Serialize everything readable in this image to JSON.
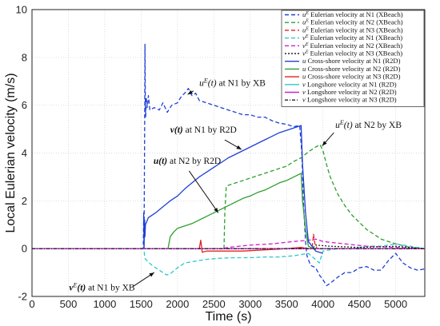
{
  "chart_data": {
    "type": "line",
    "xlabel": "Time (s)",
    "ylabel": "Local Eulerian velocity (m/s)",
    "xlim": [
      0,
      5400
    ],
    "ylim": [
      -2,
      10
    ],
    "xticks": [
      0,
      500,
      1000,
      1500,
      2000,
      2500,
      3000,
      3500,
      4000,
      4500,
      5000
    ],
    "yticks": [
      -2,
      0,
      2,
      4,
      6,
      8,
      10
    ],
    "grid": true,
    "legend_position": "top-right",
    "series": [
      {
        "name_prefix": "u",
        "name_sup": "E",
        "name_rest": " Eulerian velocity at N1 (XBeach)",
        "color": "#1f3fd6",
        "dash": "5,3",
        "points": [
          [
            0,
            0
          ],
          [
            1530,
            0
          ],
          [
            1535,
            1.5
          ],
          [
            1540,
            0
          ],
          [
            1548,
            5
          ],
          [
            1553,
            8.55
          ],
          [
            1558,
            6
          ],
          [
            1563,
            5.5
          ],
          [
            1570,
            6.3
          ],
          [
            1585,
            5.9
          ],
          [
            1600,
            6.4
          ],
          [
            1620,
            5.8
          ],
          [
            1680,
            5.9
          ],
          [
            1750,
            5.8
          ],
          [
            1800,
            6.1
          ],
          [
            1860,
            5.7
          ],
          [
            1920,
            6.0
          ],
          [
            2000,
            6.1
          ],
          [
            2060,
            6.4
          ],
          [
            2100,
            6.5
          ],
          [
            2150,
            6.7
          ],
          [
            2200,
            6.4
          ],
          [
            2250,
            6.5
          ],
          [
            2300,
            6.2
          ],
          [
            2400,
            6.1
          ],
          [
            2500,
            6.0
          ],
          [
            2600,
            5.9
          ],
          [
            2700,
            5.8
          ],
          [
            2800,
            5.7
          ],
          [
            2900,
            5.6
          ],
          [
            3000,
            5.6
          ],
          [
            3100,
            5.5
          ],
          [
            3200,
            5.5
          ],
          [
            3300,
            5.35
          ],
          [
            3400,
            5.25
          ],
          [
            3500,
            5.2
          ],
          [
            3600,
            5.1
          ],
          [
            3680,
            5.15
          ],
          [
            3710,
            4.0
          ],
          [
            3730,
            2.0
          ],
          [
            3760,
            0.3
          ],
          [
            3780,
            -0.3
          ],
          [
            3830,
            -0.7
          ],
          [
            3900,
            -0.8
          ],
          [
            3950,
            -1.1
          ],
          [
            4000,
            -1.3
          ],
          [
            4050,
            -1.55
          ],
          [
            4100,
            -1.45
          ],
          [
            4200,
            -1.2
          ],
          [
            4300,
            -1.0
          ],
          [
            4400,
            -1.0
          ],
          [
            4500,
            -0.8
          ],
          [
            4600,
            -0.75
          ],
          [
            4700,
            -0.9
          ],
          [
            4800,
            -0.9
          ],
          [
            4900,
            -0.5
          ],
          [
            5000,
            -0.2
          ],
          [
            5100,
            -0.6
          ],
          [
            5200,
            -0.8
          ],
          [
            5300,
            -0.9
          ],
          [
            5400,
            -0.85
          ]
        ]
      },
      {
        "name_prefix": "u",
        "name_sup": "E",
        "name_rest": " Eulerian velocity at N2 (XBeach)",
        "color": "#2e9e2e",
        "dash": "5,3",
        "points": [
          [
            0,
            0
          ],
          [
            2640,
            0
          ],
          [
            2650,
            1.5
          ],
          [
            2670,
            2.6
          ],
          [
            2700,
            2.65
          ],
          [
            2800,
            2.75
          ],
          [
            2900,
            2.85
          ],
          [
            3000,
            2.95
          ],
          [
            3100,
            3.05
          ],
          [
            3200,
            3.15
          ],
          [
            3300,
            3.25
          ],
          [
            3400,
            3.35
          ],
          [
            3500,
            3.45
          ],
          [
            3600,
            3.65
          ],
          [
            3700,
            3.8
          ],
          [
            3800,
            4.05
          ],
          [
            3900,
            4.25
          ],
          [
            3960,
            4.35
          ],
          [
            4000,
            4.1
          ],
          [
            4050,
            3.5
          ],
          [
            4100,
            3.0
          ],
          [
            4200,
            2.3
          ],
          [
            4300,
            1.8
          ],
          [
            4400,
            1.4
          ],
          [
            4500,
            1.1
          ],
          [
            4600,
            0.8
          ],
          [
            4700,
            0.6
          ],
          [
            4800,
            0.4
          ],
          [
            4900,
            0.3
          ],
          [
            5000,
            0.2
          ],
          [
            5200,
            0.05
          ],
          [
            5400,
            0
          ]
        ]
      },
      {
        "name_prefix": "u",
        "name_sup": "E",
        "name_rest": " Eulerian velocity at N3 (XBeach)",
        "color": "#e02020",
        "dash": "5,3",
        "points": [
          [
            0,
            0
          ],
          [
            3850,
            0
          ],
          [
            3870,
            0.6
          ],
          [
            3890,
            0.2
          ],
          [
            3920,
            0
          ],
          [
            5400,
            0
          ]
        ]
      },
      {
        "name_prefix": "v",
        "name_sup": "E",
        "name_rest": " Eulerian velocity at N1 (XBeach)",
        "color": "#2ec8c8",
        "dash": "5,3",
        "points": [
          [
            0,
            0
          ],
          [
            1540,
            0
          ],
          [
            1550,
            -0.4
          ],
          [
            1580,
            -0.5
          ],
          [
            1650,
            -0.7
          ],
          [
            1750,
            -0.9
          ],
          [
            1850,
            -1.1
          ],
          [
            1900,
            -1.05
          ],
          [
            2000,
            -0.8
          ],
          [
            2100,
            -0.6
          ],
          [
            2200,
            -0.55
          ],
          [
            2400,
            -0.45
          ],
          [
            2600,
            -0.4
          ],
          [
            2800,
            -0.38
          ],
          [
            3000,
            -0.38
          ],
          [
            3200,
            -0.35
          ],
          [
            3400,
            -0.35
          ],
          [
            3600,
            -0.3
          ],
          [
            3700,
            -0.25
          ],
          [
            3800,
            -0.2
          ],
          [
            3950,
            -0.6
          ],
          [
            4000,
            -0.1
          ],
          [
            4200,
            0
          ],
          [
            4400,
            0
          ],
          [
            4600,
            0.1
          ],
          [
            4800,
            0.1
          ],
          [
            5000,
            0.2
          ],
          [
            5200,
            0.1
          ],
          [
            5400,
            0
          ]
        ]
      },
      {
        "name_prefix": "v",
        "name_sup": "E",
        "name_rest": " Eulerian velocity at N2 (XBeach)",
        "color": "#d020d0",
        "dash": "5,3",
        "points": [
          [
            0,
            0
          ],
          [
            2600,
            0
          ],
          [
            2700,
            0.05
          ],
          [
            3000,
            0.15
          ],
          [
            3300,
            0.2
          ],
          [
            3600,
            0.3
          ],
          [
            3800,
            0.35
          ],
          [
            3900,
            0.4
          ],
          [
            4000,
            0.3
          ],
          [
            4300,
            0.2
          ],
          [
            4600,
            0.1
          ],
          [
            5000,
            0.05
          ],
          [
            5400,
            0
          ]
        ]
      },
      {
        "name_prefix": "v",
        "name_sup": "E",
        "name_rest": " Eulerian velocity at N3 (XBeach)",
        "color": "#222222",
        "dash": "2,2",
        "points": [
          [
            0,
            0
          ],
          [
            3850,
            0
          ],
          [
            3900,
            0.15
          ],
          [
            4100,
            0.1
          ],
          [
            4500,
            0.05
          ],
          [
            5000,
            0.1
          ],
          [
            5400,
            0
          ]
        ]
      },
      {
        "name_prefix": "u",
        "name_sup": "",
        "name_rest": "  Cross-shore velocity at N1 (R2D)",
        "color": "#1f3fd6",
        "dash": "",
        "points": [
          [
            1540,
            0
          ],
          [
            1548,
            1.2
          ],
          [
            1553,
            0.5
          ],
          [
            1560,
            1.0
          ],
          [
            1600,
            1.3
          ],
          [
            1700,
            1.5
          ],
          [
            1800,
            1.75
          ],
          [
            1900,
            2.0
          ],
          [
            2000,
            2.2
          ],
          [
            2100,
            2.5
          ],
          [
            2200,
            2.75
          ],
          [
            2300,
            3.0
          ],
          [
            2400,
            3.2
          ],
          [
            2500,
            3.4
          ],
          [
            2600,
            3.6
          ],
          [
            2700,
            3.8
          ],
          [
            2800,
            3.95
          ],
          [
            2900,
            4.1
          ],
          [
            3000,
            4.25
          ],
          [
            3100,
            4.4
          ],
          [
            3200,
            4.55
          ],
          [
            3300,
            4.7
          ],
          [
            3400,
            4.85
          ],
          [
            3500,
            4.95
          ],
          [
            3600,
            5.05
          ],
          [
            3700,
            5.15
          ],
          [
            3720,
            3.5
          ],
          [
            3760,
            1.5
          ],
          [
            3800,
            0.3
          ],
          [
            3900,
            -0.1
          ],
          [
            4000,
            -0.2
          ]
        ]
      },
      {
        "name_prefix": "u",
        "name_sup": "",
        "name_rest": "  Cross-shore velocity at N2 (R2D)",
        "color": "#2e9e2e",
        "dash": "",
        "points": [
          [
            1870,
            0
          ],
          [
            1900,
            0.5
          ],
          [
            1950,
            0.7
          ],
          [
            2000,
            0.85
          ],
          [
            2100,
            0.95
          ],
          [
            2200,
            1.05
          ],
          [
            2300,
            1.2
          ],
          [
            2400,
            1.35
          ],
          [
            2500,
            1.5
          ],
          [
            2600,
            1.65
          ],
          [
            2700,
            1.8
          ],
          [
            2800,
            1.95
          ],
          [
            2900,
            2.1
          ],
          [
            3000,
            2.2
          ],
          [
            3100,
            2.35
          ],
          [
            3200,
            2.45
          ],
          [
            3300,
            2.6
          ],
          [
            3400,
            2.75
          ],
          [
            3500,
            2.85
          ],
          [
            3600,
            3.0
          ],
          [
            3700,
            3.15
          ],
          [
            3720,
            2.0
          ],
          [
            3760,
            0.8
          ],
          [
            3800,
            0.1
          ],
          [
            3900,
            -0.05
          ]
        ]
      },
      {
        "name_prefix": "u",
        "name_sup": "",
        "name_rest": "  Cross-shore velocity at N3 (R2D)",
        "color": "#e02020",
        "dash": "",
        "points": [
          [
            2300,
            0
          ],
          [
            2320,
            0.35
          ],
          [
            2340,
            -0.15
          ],
          [
            2400,
            -0.1
          ],
          [
            2600,
            -0.1
          ],
          [
            2900,
            -0.1
          ],
          [
            3200,
            -0.05
          ],
          [
            3500,
            0
          ],
          [
            3700,
            0.05
          ],
          [
            3800,
            0
          ]
        ]
      },
      {
        "name_prefix": "v",
        "name_sup": "",
        "name_rest": "  Longshore velocity at N1 (R2D)",
        "color": "#2ec8c8",
        "dash": "",
        "points": [
          [
            0,
            0
          ],
          [
            5400,
            0
          ]
        ]
      },
      {
        "name_prefix": "v",
        "name_sup": "",
        "name_rest": "  Longshore velocity at N2 (R2D)",
        "color": "#d020d0",
        "dash": "",
        "points": [
          [
            0,
            0
          ],
          [
            5400,
            0
          ]
        ]
      },
      {
        "name_prefix": "v",
        "name_sup": "",
        "name_rest": "  Longshore velocity at N3 (R2D)",
        "color": "#222222",
        "dash": "4,2,1,2",
        "points": [
          [
            0,
            0
          ],
          [
            5400,
            0
          ]
        ]
      }
    ],
    "annotations": [
      {
        "id": "a1",
        "main": "u",
        "sup": "E",
        "mid": "(t)",
        "rest": " at N1 by XB",
        "style": "it",
        "tx": 2300,
        "ty": 6.8,
        "ax": 2220,
        "ay": 6.6,
        "bx": 2140,
        "by": 6.45
      },
      {
        "id": "a2",
        "main": "v",
        "sup": "",
        "mid": "(t)",
        "rest": " at N1 by R2D",
        "style": "bi",
        "tx": 1900,
        "ty": 4.85,
        "ax": 2650,
        "ay": 4.55,
        "bx": 2880,
        "by": 4.15
      },
      {
        "id": "a3",
        "main": "u",
        "sup": "",
        "mid": "(t)",
        "rest": " at N2 by R2D",
        "style": "bi",
        "tx": 1670,
        "ty": 3.55,
        "ax": 2160,
        "ay": 3.25,
        "bx": 2560,
        "by": 1.5
      },
      {
        "id": "a4",
        "main": "u",
        "sup": "E",
        "mid": "(t)",
        "rest": " at N2 by XB",
        "style": "it",
        "tx": 4170,
        "ty": 5.05,
        "ax": 4150,
        "ay": 4.85,
        "bx": 3990,
        "by": 4.3
      },
      {
        "id": "a5",
        "main": "v",
        "sup": "E",
        "mid": "(t)",
        "rest": " at N1 by XB",
        "style": "bi",
        "tx": 510,
        "ty": -1.75,
        "ax": 1380,
        "ay": -1.6,
        "bx": 1680,
        "by": -1.0
      }
    ]
  }
}
